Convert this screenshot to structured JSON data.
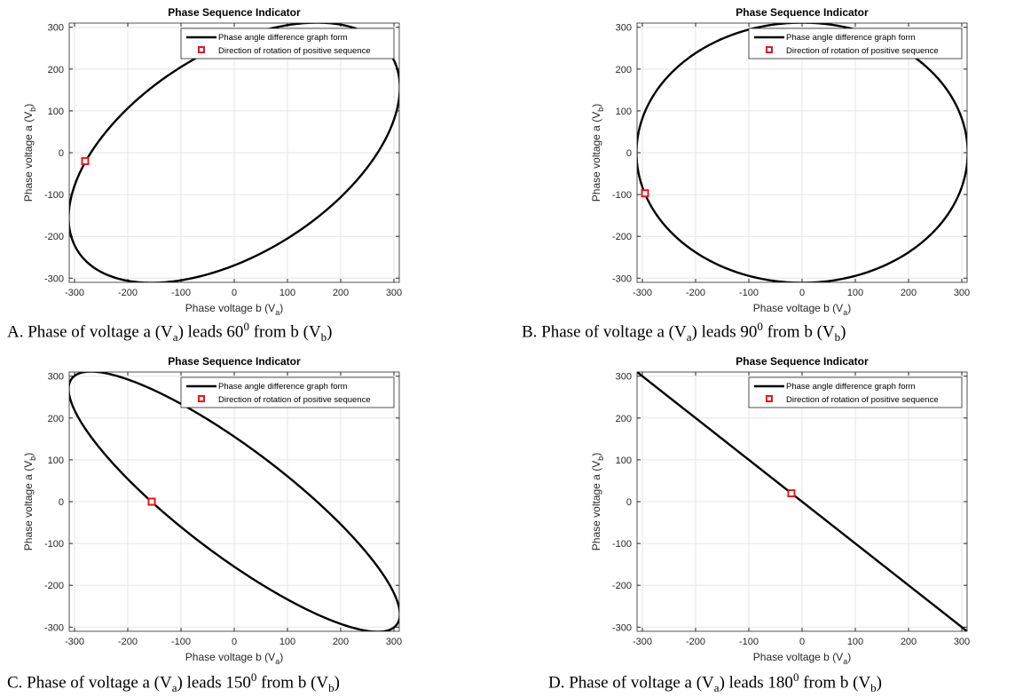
{
  "figure": {
    "panels": [
      {
        "caption": {
          "prefix": "A. Phase of voltage a (V",
          "sub1": "a",
          "mid": ") leads 60",
          "sup": "0",
          "after": " from b (V",
          "sub2": "b",
          "end": ")"
        }
      },
      {
        "caption": {
          "prefix": "B. Phase of voltage a (V",
          "sub1": "a",
          "mid": ") leads 90",
          "sup": "0",
          "after": " from b (V",
          "sub2": "b",
          "end": ")"
        }
      },
      {
        "caption": {
          "prefix": "C. Phase of voltage a (V",
          "sub1": "a",
          "mid": ") leads 150",
          "sup": "0",
          "after": " from b (V",
          "sub2": "b",
          "end": ")"
        }
      },
      {
        "caption": {
          "prefix": "D. Phase of voltage a (V",
          "sub1": "a",
          "mid": ") leads 180",
          "sup": "0",
          "after": " from b (V",
          "sub2": "b",
          "end": ")"
        }
      }
    ]
  },
  "colors": {
    "curve": "#000000",
    "marker": "#e8141c",
    "grid": "#e6e6e6",
    "axis": "#262626"
  },
  "chart_data": [
    {
      "type": "line",
      "title": "Phase Sequence Indicator",
      "xlabel": "Phase voltage b (V",
      "xlabel_sub": "a",
      "xlabel_end": ")",
      "ylabel": "Phase voltage a (V",
      "ylabel_sub": "b",
      "ylabel_end": ")",
      "xlim": [
        -310,
        310
      ],
      "ylim": [
        -310,
        310
      ],
      "xticks": [
        -300,
        -200,
        -100,
        0,
        100,
        200,
        300
      ],
      "yticks": [
        -300,
        -200,
        -100,
        0,
        100,
        200,
        300
      ],
      "grid": true,
      "legend_position": "top-right",
      "amplitude": 311,
      "phase_lead_deg": 60,
      "series": [
        {
          "name": "Phase angle difference graph form",
          "kind": "curve"
        },
        {
          "name": "Direction of rotation of positive sequence",
          "kind": "marker",
          "x": -280,
          "y": -20
        }
      ]
    },
    {
      "type": "line",
      "title": "Phase Sequence Indicator",
      "xlabel": "Phase voltage b (V",
      "xlabel_sub": "a",
      "xlabel_end": ")",
      "ylabel": "Phase voltage a (V",
      "ylabel_sub": "b",
      "ylabel_end": ")",
      "xlim": [
        -310,
        310
      ],
      "ylim": [
        -310,
        310
      ],
      "xticks": [
        -300,
        -200,
        -100,
        0,
        100,
        200,
        300
      ],
      "yticks": [
        -300,
        -200,
        -100,
        0,
        100,
        200,
        300
      ],
      "grid": true,
      "legend_position": "top-right",
      "amplitude": 311,
      "phase_lead_deg": 90,
      "series": [
        {
          "name": "Phase angle difference graph form",
          "kind": "curve"
        },
        {
          "name": "Direction of rotation of positive sequence",
          "kind": "marker",
          "x": -295,
          "y": -97
        }
      ]
    },
    {
      "type": "line",
      "title": "Phase Sequence Indicator",
      "xlabel": "Phase voltage b (V",
      "xlabel_sub": "a",
      "xlabel_end": ")",
      "ylabel": "Phase voltage a (V",
      "ylabel_sub": "b",
      "ylabel_end": ")",
      "xlim": [
        -310,
        310
      ],
      "ylim": [
        -310,
        310
      ],
      "xticks": [
        -300,
        -200,
        -100,
        0,
        100,
        200,
        300
      ],
      "yticks": [
        -300,
        -200,
        -100,
        0,
        100,
        200,
        300
      ],
      "grid": true,
      "legend_position": "top-right",
      "amplitude": 311,
      "phase_lead_deg": 150,
      "series": [
        {
          "name": "Phase angle difference graph form",
          "kind": "curve"
        },
        {
          "name": "Direction of rotation of positive sequence",
          "kind": "marker",
          "x": -155,
          "y": 0
        }
      ]
    },
    {
      "type": "line",
      "title": "Phase Sequence Indicator",
      "xlabel": "Phase voltage b (V",
      "xlabel_sub": "a",
      "xlabel_end": ")",
      "ylabel": "Phase voltage a (V",
      "ylabel_sub": "b",
      "ylabel_end": ")",
      "xlim": [
        -310,
        310
      ],
      "ylim": [
        -310,
        310
      ],
      "xticks": [
        -300,
        -200,
        -100,
        0,
        100,
        200,
        300
      ],
      "yticks": [
        -300,
        -200,
        -100,
        0,
        100,
        200,
        300
      ],
      "grid": true,
      "legend_position": "top-right",
      "amplitude": 311,
      "phase_lead_deg": 180,
      "series": [
        {
          "name": "Phase angle difference graph form",
          "kind": "curve"
        },
        {
          "name": "Direction of rotation of positive sequence",
          "kind": "marker",
          "x": -20,
          "y": 20
        }
      ]
    }
  ]
}
